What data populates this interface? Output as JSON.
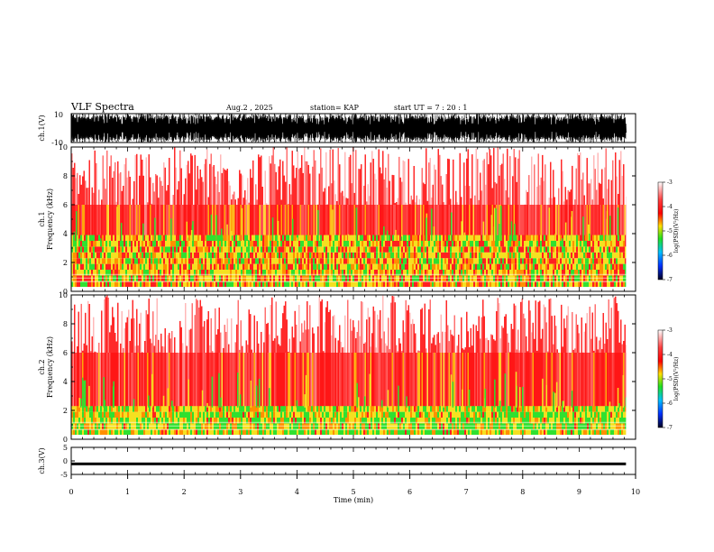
{
  "header": {
    "title": "VLF Spectra",
    "date": "Aug.2  , 2025",
    "station": "station= KAP",
    "start": "start  UT =   7 : 20 : 1"
  },
  "chart_data": [
    {
      "type": "line",
      "panel": "ch1-waveform",
      "ylabel": "ch.1(V)",
      "ylim": [
        -10,
        10
      ],
      "y_ticks": [
        "10",
        "-10"
      ],
      "xlim": [
        0,
        10
      ],
      "description": "dense saturated waveform, data ends near 9.83 min"
    },
    {
      "type": "heatmap",
      "panel": "ch1-spectrogram",
      "ylabel": "ch.1\nFrequency (kHz)",
      "ylabel_lines": [
        "ch.1",
        "Frequency  (kHz)"
      ],
      "ylim": [
        0,
        10
      ],
      "y_ticks": [
        "0",
        "2",
        "4",
        "6",
        "8",
        "10"
      ],
      "xlim": [
        0,
        10
      ],
      "data_end_min": 9.83,
      "colorbar": {
        "label": "log(PSD)(V²/Hz)",
        "range": [
          -7,
          -3
        ],
        "ticks": [
          "-3",
          "-4",
          "-5",
          "-6",
          "-7"
        ]
      },
      "bands": [
        {
          "f_from": 0.3,
          "f_to": 3.5,
          "level": "high",
          "colors": [
            "#f0e020",
            "#ff8000",
            "#40e040"
          ]
        },
        {
          "f_from": 3.5,
          "f_to": 10,
          "level": "medium",
          "colors": [
            "#ff2020",
            "#ffb0b0"
          ]
        }
      ]
    },
    {
      "type": "heatmap",
      "panel": "ch2-spectrogram",
      "ylabel": "ch.2\nFrequency (kHz)",
      "ylabel_lines": [
        "ch.2",
        "Frequency  (kHz)"
      ],
      "ylim": [
        0,
        10
      ],
      "y_ticks": [
        "0",
        "2",
        "4",
        "6",
        "8",
        "10"
      ],
      "xlim": [
        0,
        10
      ],
      "data_end_min": 9.83,
      "colorbar": {
        "label": "log(PSD)(V²/Hz)",
        "range": [
          -7,
          -3
        ],
        "ticks": [
          "-3",
          "-4",
          "-5",
          "-6",
          "-7"
        ]
      },
      "bands": [
        {
          "f_from": 0.3,
          "f_to": 2.2,
          "level": "high",
          "colors": [
            "#40e040",
            "#f0e020",
            "#ff8000"
          ]
        },
        {
          "f_from": 2.2,
          "f_to": 10,
          "level": "medium",
          "colors": [
            "#ff2020",
            "#ffb0b0"
          ]
        }
      ]
    },
    {
      "type": "line",
      "panel": "ch3-waveform",
      "ylabel": "ch.3(V)",
      "ylim": [
        -5,
        5
      ],
      "y_ticks": [
        "5",
        "0",
        "-5"
      ],
      "xlim": [
        0,
        10
      ],
      "level_band": [
        -1.6,
        -0.6
      ]
    }
  ],
  "xaxis": {
    "label": "Time  (min)",
    "ticks": [
      "0",
      "1",
      "2",
      "3",
      "4",
      "5",
      "6",
      "7",
      "8",
      "9",
      "10"
    ]
  }
}
